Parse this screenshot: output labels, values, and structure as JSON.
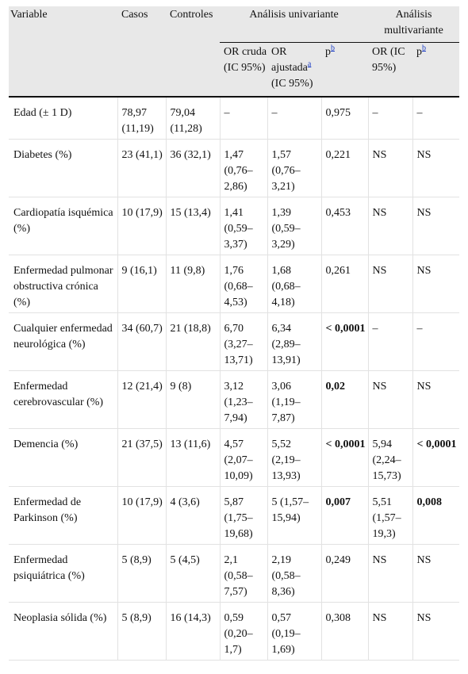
{
  "header": {
    "variable": "Variable",
    "casos": "Casos",
    "controles": "Controles",
    "univariante": "Análisis univariante",
    "multivariante": "Análisis multivariante",
    "or_cruda": "OR cruda (IC 95%)",
    "or_ajustada": "OR ajustada",
    "or_ajustada_sup": "a",
    "or_ajustada_ic": "(IC 95%)",
    "p_label": "p",
    "p_sup": "b",
    "or_multi": "OR (IC 95%)"
  },
  "rows": [
    {
      "variable": "Edad (± 1 D)",
      "casos": "78,97 (11,19)",
      "controles": "79,04 (11,28)",
      "or_cruda": "–",
      "or_ajustada": "–",
      "p_uni": "0,975",
      "p_uni_bold": false,
      "or_multi": "–",
      "p_multi": "–",
      "p_multi_bold": false
    },
    {
      "variable": "Diabetes (%)",
      "casos": "23 (41,1)",
      "controles": "36 (32,1)",
      "or_cruda": "1,47 (0,76–2,86)",
      "or_ajustada": "1,57 (0,76–3,21)",
      "p_uni": "0,221",
      "p_uni_bold": false,
      "or_multi": "NS",
      "p_multi": "NS",
      "p_multi_bold": false
    },
    {
      "variable": "Cardiopatía isquémica (%)",
      "casos": "10 (17,9)",
      "controles": "15 (13,4)",
      "or_cruda": "1,41 (0,59–3,37)",
      "or_ajustada": "1,39 (0,59–3,29)",
      "p_uni": "0,453",
      "p_uni_bold": false,
      "or_multi": "NS",
      "p_multi": "NS",
      "p_multi_bold": false
    },
    {
      "variable": "Enfermedad pulmonar obstructiva crónica (%)",
      "casos": "9 (16,1)",
      "controles": "11 (9,8)",
      "or_cruda": "1,76 (0,68–4,53)",
      "or_ajustada": "1,68 (0,68–4,18)",
      "p_uni": "0,261",
      "p_uni_bold": false,
      "or_multi": "NS",
      "p_multi": "NS",
      "p_multi_bold": false
    },
    {
      "variable": "Cualquier enfermedad neurológica (%)",
      "casos": "34 (60,7)",
      "controles": "21 (18,8)",
      "or_cruda": "6,70 (3,27–13,71)",
      "or_ajustada": "6,34 (2,89–13,91)",
      "p_uni": "< 0,0001",
      "p_uni_bold": true,
      "or_multi": "–",
      "p_multi": "–",
      "p_multi_bold": false
    },
    {
      "variable": "Enfermedad cerebrovascular (%)",
      "casos": "12 (21,4)",
      "controles": "9 (8)",
      "or_cruda": "3,12 (1,23–7,94)",
      "or_ajustada": "3,06 (1,19–7,87)",
      "p_uni": "0,02",
      "p_uni_bold": true,
      "or_multi": "NS",
      "p_multi": "NS",
      "p_multi_bold": false
    },
    {
      "variable": "Demencia (%)",
      "casos": "21 (37,5)",
      "controles": "13 (11,6)",
      "or_cruda": "4,57 (2,07–10,09)",
      "or_ajustada": "5,52 (2,19–13,93)",
      "p_uni": "< 0,0001",
      "p_uni_bold": true,
      "or_multi": "5,94 (2,24–15,73)",
      "p_multi": "< 0,0001",
      "p_multi_bold": true
    },
    {
      "variable": "Enfermedad de Parkinson (%)",
      "casos": "10 (17,9)",
      "controles": "4 (3,6)",
      "or_cruda": "5,87 (1,75–19,68)",
      "or_ajustada": "5 (1,57–15,94)",
      "p_uni": "0,007",
      "p_uni_bold": true,
      "or_multi": "5,51 (1,57–19,3)",
      "p_multi": "0,008",
      "p_multi_bold": true
    },
    {
      "variable": "Enfermedad psiquiátrica (%)",
      "casos": "5 (8,9)",
      "controles": "5 (4,5)",
      "or_cruda": "2,1 (0,58–7,57)",
      "or_ajustada": "2,19 (0,58–8,36)",
      "p_uni": "0,249",
      "p_uni_bold": false,
      "or_multi": "NS",
      "p_multi": "NS",
      "p_multi_bold": false
    },
    {
      "variable": "Neoplasia sólida (%)",
      "casos": "5 (8,9)",
      "controles": "16 (14,3)",
      "or_cruda": "0,59 (0,20–1,7)",
      "or_ajustada": "0,57 (0,19–1,69)",
      "p_uni": "0,308",
      "p_uni_bold": false,
      "or_multi": "NS",
      "p_multi": "NS",
      "p_multi_bold": false
    }
  ]
}
